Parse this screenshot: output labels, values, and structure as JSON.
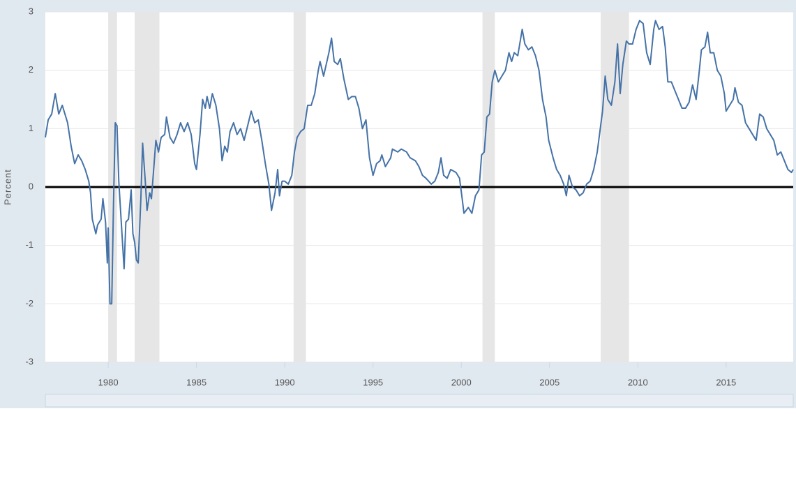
{
  "chart_data": {
    "type": "line",
    "y_label": "Percent",
    "xlim": [
      1976.44,
      2018.8
    ],
    "xticks": [
      1980,
      1985,
      1990,
      1995,
      2000,
      2005,
      2010,
      2015
    ],
    "ylim": [
      -3,
      3
    ],
    "yticks": [
      3,
      2,
      1,
      0,
      -1,
      -2,
      -3
    ],
    "grid": true,
    "reference_line": 0,
    "recession_color": "#e6e6e6",
    "recessions": [
      [
        1980.0,
        1980.5
      ],
      [
        1981.5,
        1982.9
      ],
      [
        1990.5,
        1991.2
      ],
      [
        2001.2,
        2001.9
      ],
      [
        2007.9,
        2009.5
      ]
    ],
    "color": "#4572a7",
    "x": [
      1976.44,
      1976.6,
      1976.8,
      1977.0,
      1977.2,
      1977.4,
      1977.7,
      1977.9,
      1978.1,
      1978.3,
      1978.5,
      1978.7,
      1978.9,
      1979.0,
      1979.1,
      1979.3,
      1979.4,
      1979.6,
      1979.7,
      1979.85,
      1979.95,
      1980.0,
      1980.1,
      1980.2,
      1980.3,
      1980.4,
      1980.5,
      1980.6,
      1980.8,
      1980.9,
      1981.0,
      1981.15,
      1981.3,
      1981.4,
      1981.5,
      1981.6,
      1981.7,
      1981.85,
      1981.95,
      1982.1,
      1982.2,
      1982.35,
      1982.45,
      1982.6,
      1982.7,
      1982.85,
      1983.0,
      1983.2,
      1983.3,
      1983.5,
      1983.7,
      1983.9,
      1984.1,
      1984.3,
      1984.5,
      1984.7,
      1984.9,
      1985.0,
      1985.2,
      1985.35,
      1985.5,
      1985.6,
      1985.75,
      1985.9,
      1986.1,
      1986.3,
      1986.45,
      1986.6,
      1986.75,
      1986.9,
      1987.1,
      1987.3,
      1987.5,
      1987.7,
      1987.9,
      1988.1,
      1988.3,
      1988.5,
      1988.7,
      1988.9,
      1989.1,
      1989.25,
      1989.45,
      1989.6,
      1989.7,
      1989.85,
      1990.0,
      1990.2,
      1990.4,
      1990.55,
      1990.7,
      1990.9,
      1991.1,
      1991.3,
      1991.5,
      1991.7,
      1991.9,
      1992.0,
      1992.2,
      1992.35,
      1992.5,
      1992.65,
      1992.8,
      1993.0,
      1993.15,
      1993.35,
      1993.6,
      1993.8,
      1994.0,
      1994.2,
      1994.4,
      1994.6,
      1994.8,
      1995.0,
      1995.2,
      1995.4,
      1995.5,
      1995.7,
      1995.9,
      1996.0,
      1996.1,
      1996.4,
      1996.6,
      1996.9,
      1997.1,
      1997.4,
      1997.6,
      1997.8,
      1998.0,
      1998.3,
      1998.5,
      1998.7,
      1998.85,
      1999.0,
      1999.2,
      1999.4,
      1999.7,
      1999.9,
      2000.05,
      2000.15,
      2000.4,
      2000.6,
      2000.8,
      2001.0,
      2001.15,
      2001.3,
      2001.45,
      2001.6,
      2001.75,
      2001.9,
      2002.1,
      2002.3,
      2002.5,
      2002.7,
      2002.85,
      2003.0,
      2003.2,
      2003.45,
      2003.6,
      2003.8,
      2004.0,
      2004.2,
      2004.4,
      2004.6,
      2004.8,
      2004.95,
      2005.2,
      2005.4,
      2005.6,
      2005.8,
      2005.95,
      2006.1,
      2006.3,
      2006.5,
      2006.7,
      2006.9,
      2007.1,
      2007.3,
      2007.5,
      2007.7,
      2007.85,
      2008.0,
      2008.15,
      2008.3,
      2008.5,
      2008.7,
      2008.85,
      2009.0,
      2009.15,
      2009.35,
      2009.5,
      2009.7,
      2009.9,
      2010.1,
      2010.3,
      2010.5,
      2010.7,
      2010.9,
      2011.0,
      2011.2,
      2011.4,
      2011.55,
      2011.7,
      2011.9,
      2012.1,
      2012.3,
      2012.5,
      2012.7,
      2012.9,
      2013.1,
      2013.3,
      2013.45,
      2013.6,
      2013.8,
      2013.95,
      2014.1,
      2014.3,
      2014.5,
      2014.7,
      2014.9,
      2015.0,
      2015.2,
      2015.4,
      2015.5,
      2015.7,
      2015.9,
      2016.1,
      2016.3,
      2016.5,
      2016.7,
      2016.9,
      2017.1,
      2017.3,
      2017.5,
      2017.7,
      2017.9,
      2018.1,
      2018.3,
      2018.5,
      2018.7,
      2018.8
    ],
    "values": [
      0.85,
      1.15,
      1.25,
      1.6,
      1.25,
      1.4,
      1.1,
      0.7,
      0.4,
      0.55,
      0.45,
      0.3,
      0.1,
      -0.1,
      -0.55,
      -0.8,
      -0.65,
      -0.55,
      -0.2,
      -0.6,
      -1.3,
      -0.7,
      -2.0,
      -2.0,
      -0.3,
      1.1,
      1.05,
      0.1,
      -0.9,
      -1.4,
      -0.6,
      -0.55,
      -0.05,
      -0.8,
      -0.95,
      -1.25,
      -1.3,
      -0.2,
      0.75,
      0.1,
      -0.4,
      -0.1,
      -0.2,
      0.4,
      0.8,
      0.6,
      0.85,
      0.9,
      1.2,
      0.85,
      0.75,
      0.9,
      1.1,
      0.95,
      1.1,
      0.9,
      0.4,
      0.3,
      0.9,
      1.5,
      1.35,
      1.55,
      1.35,
      1.6,
      1.4,
      1.0,
      0.45,
      0.7,
      0.6,
      0.95,
      1.1,
      0.9,
      1.0,
      0.8,
      1.05,
      1.3,
      1.1,
      1.15,
      0.8,
      0.4,
      0.05,
      -0.4,
      -0.1,
      0.3,
      -0.15,
      0.1,
      0.1,
      0.05,
      0.2,
      0.6,
      0.85,
      0.95,
      1.0,
      1.4,
      1.4,
      1.6,
      2.0,
      2.15,
      1.9,
      2.1,
      2.3,
      2.55,
      2.15,
      2.1,
      2.2,
      1.85,
      1.5,
      1.55,
      1.55,
      1.35,
      1.0,
      1.15,
      0.5,
      0.2,
      0.4,
      0.45,
      0.55,
      0.35,
      0.45,
      0.5,
      0.65,
      0.6,
      0.65,
      0.6,
      0.5,
      0.45,
      0.35,
      0.2,
      0.15,
      0.05,
      0.1,
      0.25,
      0.5,
      0.2,
      0.15,
      0.3,
      0.25,
      0.15,
      -0.2,
      -0.45,
      -0.35,
      -0.45,
      -0.15,
      -0.05,
      0.55,
      0.6,
      1.2,
      1.25,
      1.8,
      2.0,
      1.8,
      1.9,
      2.0,
      2.3,
      2.15,
      2.3,
      2.25,
      2.7,
      2.45,
      2.35,
      2.4,
      2.25,
      2.0,
      1.5,
      1.2,
      0.8,
      0.5,
      0.3,
      0.2,
      0.05,
      -0.15,
      0.2,
      0.0,
      -0.05,
      -0.15,
      -0.1,
      0.05,
      0.1,
      0.3,
      0.6,
      0.95,
      1.3,
      1.9,
      1.5,
      1.4,
      1.8,
      2.45,
      1.6,
      2.1,
      2.5,
      2.45,
      2.45,
      2.7,
      2.85,
      2.8,
      2.3,
      2.1,
      2.7,
      2.85,
      2.7,
      2.75,
      2.4,
      1.8,
      1.8,
      1.65,
      1.5,
      1.35,
      1.35,
      1.45,
      1.75,
      1.5,
      1.9,
      2.35,
      2.4,
      2.65,
      2.3,
      2.3,
      2.0,
      1.9,
      1.6,
      1.3,
      1.4,
      1.5,
      1.7,
      1.45,
      1.4,
      1.1,
      1.0,
      0.9,
      0.8,
      1.25,
      1.2,
      1.0,
      0.9,
      0.8,
      0.55,
      0.6,
      0.45,
      0.3,
      0.25,
      0.3
    ]
  }
}
